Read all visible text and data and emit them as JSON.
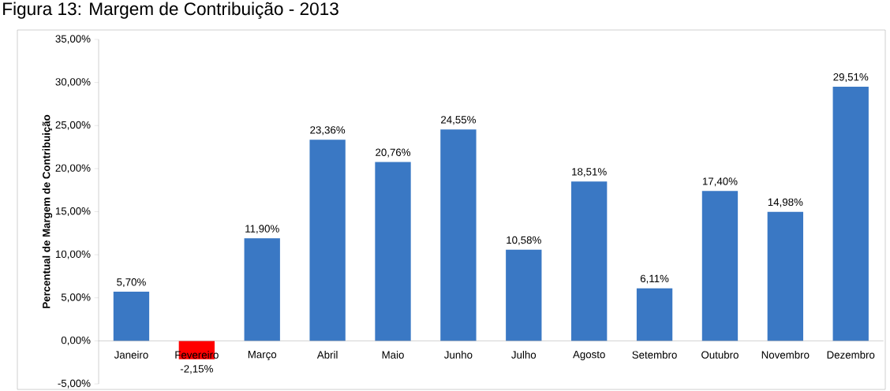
{
  "chart_data": {
    "type": "bar",
    "title": "Figura 13: Margem de Contribuição - 2013",
    "ylabel": "Percentual de Margem de Contribuição",
    "categories": [
      "Janeiro",
      "Fevereiro",
      "Março",
      "Abril",
      "Maio",
      "Junho",
      "Julho",
      "Agosto",
      "Setembro",
      "Outubro",
      "Novembro",
      "Dezembro"
    ],
    "values": [
      5.7,
      -2.15,
      11.9,
      23.36,
      20.76,
      24.55,
      10.58,
      18.51,
      6.11,
      17.4,
      14.98,
      29.51
    ],
    "value_labels": [
      "5,70%",
      "-2,15%",
      "11,90%",
      "23,36%",
      "20,76%",
      "24,55%",
      "10,58%",
      "18,51%",
      "6,11%",
      "17,40%",
      "14,98%",
      "29,51%"
    ],
    "colors": [
      "#3a78c4",
      "#ff0000",
      "#3a78c4",
      "#3a78c4",
      "#3a78c4",
      "#3a78c4",
      "#3a78c4",
      "#3a78c4",
      "#3a78c4",
      "#3a78c4",
      "#3a78c4",
      "#3a78c4"
    ],
    "ylim": [
      -5,
      35
    ],
    "yticks": [
      {
        "value": -5,
        "label": "-5,00%"
      },
      {
        "value": 0,
        "label": "0,00%"
      },
      {
        "value": 5,
        "label": "5,00%"
      },
      {
        "value": 10,
        "label": "10,00%"
      },
      {
        "value": 15,
        "label": "15,00%"
      },
      {
        "value": 20,
        "label": "20,00%"
      },
      {
        "value": 25,
        "label": "25,00%"
      },
      {
        "value": 30,
        "label": "30,00%"
      },
      {
        "value": 35,
        "label": "35,00%"
      }
    ],
    "grid": false
  }
}
